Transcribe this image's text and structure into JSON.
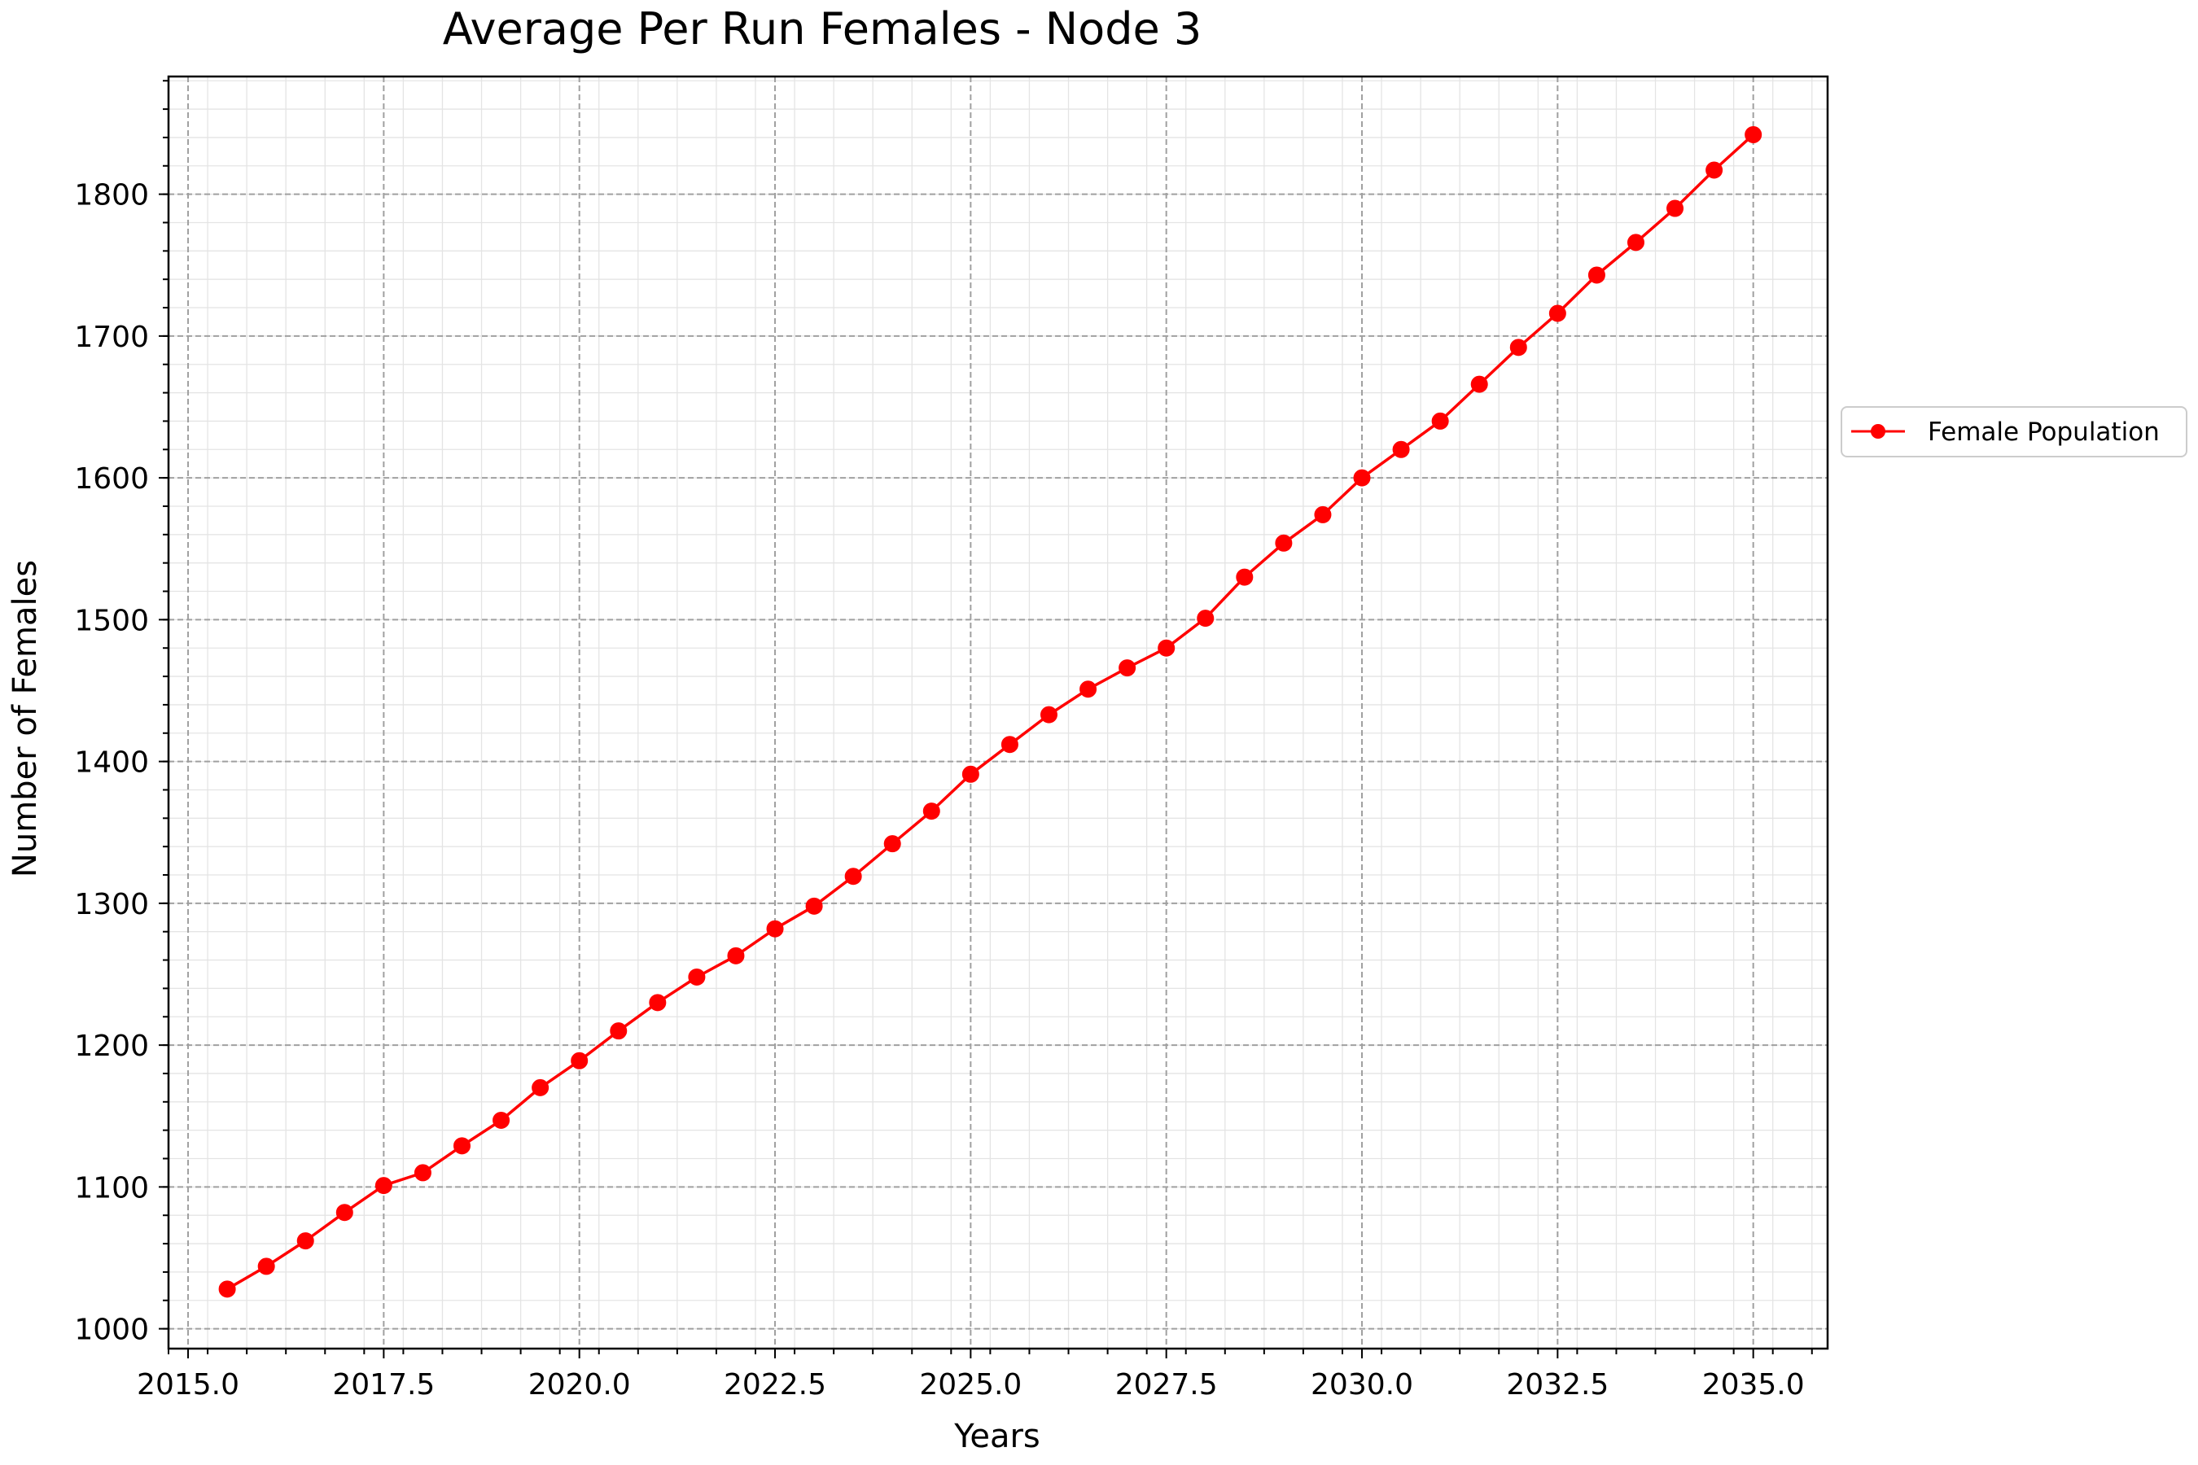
{
  "chart_data": {
    "type": "line",
    "title": "Average Per Run Females - Node 3",
    "xlabel": "Years",
    "ylabel": "Number of Females",
    "xlim": [
      2014.75,
      2035.95
    ],
    "ylim": [
      986,
      1883
    ],
    "xticks": [
      2015.0,
      2017.5,
      2020.0,
      2022.5,
      2025.0,
      2027.5,
      2030.0,
      2032.5,
      2035.0
    ],
    "xtick_labels": [
      "2015.0",
      "2017.5",
      "2020.0",
      "2022.5",
      "2025.0",
      "2027.5",
      "2030.0",
      "2032.5",
      "2035.0"
    ],
    "yticks": [
      1000,
      1100,
      1200,
      1300,
      1400,
      1500,
      1600,
      1700,
      1800
    ],
    "ytick_labels": [
      "1000",
      "1100",
      "1200",
      "1300",
      "1400",
      "1500",
      "1600",
      "1700",
      "1800"
    ],
    "grid": true,
    "minor_grid": true,
    "legend_position": "right, outside plot",
    "series": [
      {
        "name": "Female Population",
        "color": "#ff0000",
        "marker": "circle",
        "x": [
          2015.5,
          2016.0,
          2016.5,
          2017.0,
          2017.5,
          2018.0,
          2018.5,
          2019.0,
          2019.5,
          2020.0,
          2020.5,
          2021.0,
          2021.5,
          2022.0,
          2022.5,
          2023.0,
          2023.5,
          2024.0,
          2024.5,
          2025.0,
          2025.5,
          2026.0,
          2026.5,
          2027.0,
          2027.5,
          2028.0,
          2028.5,
          2029.0,
          2029.5,
          2030.0,
          2030.5,
          2031.0,
          2031.5,
          2032.0,
          2032.5,
          2033.0,
          2033.5,
          2034.0,
          2034.5,
          2035.0
        ],
        "values": [
          1028,
          1044,
          1062,
          1082,
          1101,
          1110,
          1129,
          1147,
          1170,
          1189,
          1210,
          1230,
          1248,
          1263,
          1282,
          1298,
          1319,
          1342,
          1365,
          1391,
          1412,
          1433,
          1451,
          1466,
          1480,
          1501,
          1530,
          1554,
          1574,
          1600,
          1620,
          1640,
          1666,
          1692,
          1716,
          1743,
          1766,
          1790,
          1817,
          1842
        ]
      }
    ]
  }
}
